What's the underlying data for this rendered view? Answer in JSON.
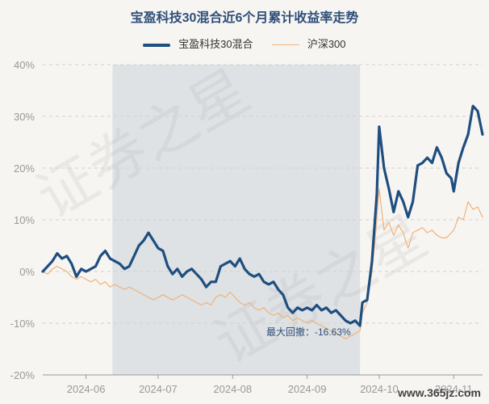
{
  "chart_data": {
    "type": "line",
    "title": "宝盈科技30混合近6个月累计收益率走势",
    "y_unit": "%",
    "ylim": [
      -20,
      40
    ],
    "yticks": [
      -20,
      -10,
      0,
      10,
      20,
      30,
      40
    ],
    "ytick_labels": [
      "-20%",
      "-10%",
      "0%",
      "10%",
      "20%",
      "30%",
      "40%"
    ],
    "xlim": [
      "2024-05-14",
      "2024-11-13"
    ],
    "xticks": [
      "2024-06-01",
      "2024-07-01",
      "2024-08-01",
      "2024-09-01",
      "2024-10-01",
      "2024-11-01"
    ],
    "xtick_labels": [
      "2024-06",
      "2024-07",
      "2024-08",
      "2024-09",
      "2024-10",
      "2024-11"
    ],
    "grid": "horizontal dashed",
    "legend": "top-center",
    "drawdown": {
      "label": "最大回撤：-16.63%",
      "start": "2024-06-12",
      "end": "2024-09-23"
    },
    "series": [
      {
        "name": "宝盈科技30混合",
        "color": "#1f4e80",
        "points": [
          [
            "2024-05-14",
            0
          ],
          [
            "2024-05-16",
            1.0
          ],
          [
            "2024-05-18",
            2.0
          ],
          [
            "2024-05-20",
            3.5
          ],
          [
            "2024-05-22",
            2.5
          ],
          [
            "2024-05-24",
            3.0
          ],
          [
            "2024-05-26",
            1.5
          ],
          [
            "2024-05-28",
            -1.0
          ],
          [
            "2024-05-30",
            0.5
          ],
          [
            "2024-06-01",
            0
          ],
          [
            "2024-06-03",
            0.5
          ],
          [
            "2024-06-05",
            1.0
          ],
          [
            "2024-06-07",
            3.0
          ],
          [
            "2024-06-09",
            4.0
          ],
          [
            "2024-06-11",
            2.5
          ],
          [
            "2024-06-13",
            2.0
          ],
          [
            "2024-06-15",
            1.5
          ],
          [
            "2024-06-17",
            0.5
          ],
          [
            "2024-06-19",
            1.0
          ],
          [
            "2024-06-21",
            3.0
          ],
          [
            "2024-06-23",
            5.0
          ],
          [
            "2024-06-25",
            6.0
          ],
          [
            "2024-06-27",
            7.5
          ],
          [
            "2024-06-29",
            6.0
          ],
          [
            "2024-07-01",
            4.5
          ],
          [
            "2024-07-03",
            4.0
          ],
          [
            "2024-07-05",
            1.0
          ],
          [
            "2024-07-07",
            -0.5
          ],
          [
            "2024-07-09",
            0.5
          ],
          [
            "2024-07-11",
            -1.0
          ],
          [
            "2024-07-13",
            0
          ],
          [
            "2024-07-15",
            0.5
          ],
          [
            "2024-07-17",
            -0.5
          ],
          [
            "2024-07-19",
            -1.5
          ],
          [
            "2024-07-21",
            -3.0
          ],
          [
            "2024-07-23",
            -2.0
          ],
          [
            "2024-07-25",
            -2.0
          ],
          [
            "2024-07-27",
            1.0
          ],
          [
            "2024-07-29",
            1.5
          ],
          [
            "2024-07-31",
            2.0
          ],
          [
            "2024-08-02",
            1.0
          ],
          [
            "2024-08-04",
            2.5
          ],
          [
            "2024-08-06",
            0.5
          ],
          [
            "2024-08-08",
            -0.5
          ],
          [
            "2024-08-10",
            -1.0
          ],
          [
            "2024-08-12",
            -0.5
          ],
          [
            "2024-08-14",
            -2.0
          ],
          [
            "2024-08-16",
            -2.5
          ],
          [
            "2024-08-18",
            -2.0
          ],
          [
            "2024-08-20",
            -3.5
          ],
          [
            "2024-08-22",
            -4.5
          ],
          [
            "2024-08-24",
            -7.0
          ],
          [
            "2024-08-26",
            -8.0
          ],
          [
            "2024-08-28",
            -7.0
          ],
          [
            "2024-08-30",
            -7.5
          ],
          [
            "2024-09-01",
            -7.0
          ],
          [
            "2024-09-03",
            -7.5
          ],
          [
            "2024-09-05",
            -6.5
          ],
          [
            "2024-09-07",
            -7.5
          ],
          [
            "2024-09-09",
            -7.0
          ],
          [
            "2024-09-11",
            -8.0
          ],
          [
            "2024-09-13",
            -7.5
          ],
          [
            "2024-09-15",
            -8.5
          ],
          [
            "2024-09-17",
            -9.5
          ],
          [
            "2024-09-19",
            -10.0
          ],
          [
            "2024-09-21",
            -9.5
          ],
          [
            "2024-09-23",
            -10.5
          ],
          [
            "2024-09-24",
            -6.0
          ],
          [
            "2024-09-26",
            -5.5
          ],
          [
            "2024-09-28",
            2.0
          ],
          [
            "2024-09-30",
            15.0
          ],
          [
            "2024-10-01",
            28.0
          ],
          [
            "2024-10-03",
            20.0
          ],
          [
            "2024-10-05",
            16.0
          ],
          [
            "2024-10-07",
            11.5
          ],
          [
            "2024-10-09",
            15.5
          ],
          [
            "2024-10-11",
            13.5
          ],
          [
            "2024-10-13",
            10.5
          ],
          [
            "2024-10-15",
            13.5
          ],
          [
            "2024-10-17",
            20.5
          ],
          [
            "2024-10-19",
            21.0
          ],
          [
            "2024-10-21",
            22.0
          ],
          [
            "2024-10-23",
            21.0
          ],
          [
            "2024-10-25",
            24.0
          ],
          [
            "2024-10-27",
            22.0
          ],
          [
            "2024-10-29",
            19.0
          ],
          [
            "2024-10-31",
            18.0
          ],
          [
            "2024-11-01",
            15.5
          ],
          [
            "2024-11-03",
            21.0
          ],
          [
            "2024-11-05",
            24.0
          ],
          [
            "2024-11-07",
            26.5
          ],
          [
            "2024-11-09",
            32.0
          ],
          [
            "2024-11-11",
            31.0
          ],
          [
            "2024-11-13",
            26.5
          ]
        ]
      },
      {
        "name": "沪深300",
        "color": "#f0b27a",
        "points": [
          [
            "2024-05-14",
            0
          ],
          [
            "2024-05-16",
            -0.5
          ],
          [
            "2024-05-18",
            0.5
          ],
          [
            "2024-05-20",
            1.0
          ],
          [
            "2024-05-22",
            0.5
          ],
          [
            "2024-05-24",
            0
          ],
          [
            "2024-05-26",
            -1.0
          ],
          [
            "2024-05-28",
            -1.5
          ],
          [
            "2024-05-30",
            -1.0
          ],
          [
            "2024-06-01",
            -1.5
          ],
          [
            "2024-06-03",
            -2.0
          ],
          [
            "2024-06-05",
            -1.5
          ],
          [
            "2024-06-07",
            -2.5
          ],
          [
            "2024-06-09",
            -2.0
          ],
          [
            "2024-06-11",
            -3.0
          ],
          [
            "2024-06-13",
            -2.5
          ],
          [
            "2024-06-15",
            -3.0
          ],
          [
            "2024-06-17",
            -3.5
          ],
          [
            "2024-06-19",
            -3.0
          ],
          [
            "2024-06-21",
            -3.5
          ],
          [
            "2024-06-23",
            -4.0
          ],
          [
            "2024-06-25",
            -4.5
          ],
          [
            "2024-06-27",
            -5.0
          ],
          [
            "2024-06-29",
            -5.5
          ],
          [
            "2024-07-01",
            -5.0
          ],
          [
            "2024-07-03",
            -4.5
          ],
          [
            "2024-07-05",
            -5.0
          ],
          [
            "2024-07-07",
            -5.5
          ],
          [
            "2024-07-09",
            -5.0
          ],
          [
            "2024-07-11",
            -4.5
          ],
          [
            "2024-07-13",
            -5.0
          ],
          [
            "2024-07-15",
            -5.5
          ],
          [
            "2024-07-17",
            -6.0
          ],
          [
            "2024-07-19",
            -6.5
          ],
          [
            "2024-07-21",
            -6.0
          ],
          [
            "2024-07-23",
            -6.5
          ],
          [
            "2024-07-25",
            -5.0
          ],
          [
            "2024-07-27",
            -4.5
          ],
          [
            "2024-07-29",
            -5.0
          ],
          [
            "2024-07-31",
            -4.0
          ],
          [
            "2024-08-02",
            -5.0
          ],
          [
            "2024-08-04",
            -6.0
          ],
          [
            "2024-08-06",
            -6.5
          ],
          [
            "2024-08-08",
            -6.0
          ],
          [
            "2024-08-10",
            -7.0
          ],
          [
            "2024-08-12",
            -7.5
          ],
          [
            "2024-08-14",
            -7.0
          ],
          [
            "2024-08-16",
            -8.0
          ],
          [
            "2024-08-18",
            -8.5
          ],
          [
            "2024-08-20",
            -8.0
          ],
          [
            "2024-08-22",
            -9.0
          ],
          [
            "2024-08-24",
            -8.5
          ],
          [
            "2024-08-26",
            -9.5
          ],
          [
            "2024-08-28",
            -9.0
          ],
          [
            "2024-08-30",
            -9.5
          ],
          [
            "2024-09-01",
            -10.0
          ],
          [
            "2024-09-03",
            -9.5
          ],
          [
            "2024-09-05",
            -10.0
          ],
          [
            "2024-09-07",
            -10.5
          ],
          [
            "2024-09-09",
            -11.0
          ],
          [
            "2024-09-11",
            -11.5
          ],
          [
            "2024-09-13",
            -12.0
          ],
          [
            "2024-09-15",
            -12.5
          ],
          [
            "2024-09-17",
            -13.0
          ],
          [
            "2024-09-19",
            -12.5
          ],
          [
            "2024-09-21",
            -12.0
          ],
          [
            "2024-09-23",
            -11.5
          ],
          [
            "2024-09-24",
            -8.0
          ],
          [
            "2024-09-26",
            -6.0
          ],
          [
            "2024-09-28",
            0
          ],
          [
            "2024-09-30",
            10.0
          ],
          [
            "2024-10-01",
            16.0
          ],
          [
            "2024-10-03",
            8.0
          ],
          [
            "2024-10-05",
            9.5
          ],
          [
            "2024-10-07",
            7.0
          ],
          [
            "2024-10-09",
            9.0
          ],
          [
            "2024-10-11",
            7.5
          ],
          [
            "2024-10-13",
            4.5
          ],
          [
            "2024-10-15",
            7.5
          ],
          [
            "2024-10-17",
            8.0
          ],
          [
            "2024-10-19",
            8.5
          ],
          [
            "2024-10-21",
            7.5
          ],
          [
            "2024-10-23",
            8.0
          ],
          [
            "2024-10-25",
            7.0
          ],
          [
            "2024-10-27",
            6.5
          ],
          [
            "2024-10-29",
            6.5
          ],
          [
            "2024-10-31",
            7.5
          ],
          [
            "2024-11-01",
            8.0
          ],
          [
            "2024-11-03",
            10.5
          ],
          [
            "2024-11-05",
            10.0
          ],
          [
            "2024-11-07",
            13.5
          ],
          [
            "2024-11-09",
            12.0
          ],
          [
            "2024-11-11",
            12.5
          ],
          [
            "2024-11-13",
            10.5
          ]
        ]
      }
    ]
  },
  "watermark_text": "证券之星",
  "site_text": "www.365jz.com"
}
